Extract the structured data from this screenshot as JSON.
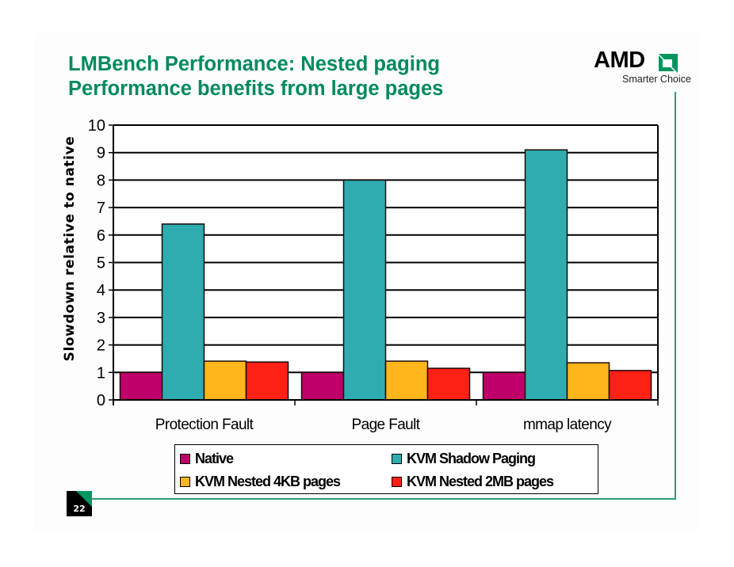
{
  "slide": {
    "title_line1": "LMBench Performance: Nested paging",
    "title_line2": "Performance benefits from large pages",
    "logo": {
      "brand": "AMD",
      "tagline": "Smarter Choice"
    },
    "slide_number": "22",
    "colors": {
      "title": "#008a5e",
      "accent_line": "#2a9c7a"
    }
  },
  "chart_data": {
    "type": "bar",
    "title": "LMBench Performance: Nested paging Performance benefits from large pages",
    "xlabel": "",
    "ylabel": "Slowdown relative to native",
    "ylim": [
      0,
      10
    ],
    "yticks": [
      0,
      1,
      2,
      3,
      4,
      5,
      6,
      7,
      8,
      9,
      10
    ],
    "grid": true,
    "legend_position": "bottom",
    "categories": [
      "Protection Fault",
      "Page Fault",
      "mmap latency"
    ],
    "series": [
      {
        "name": "Native",
        "color": "#c0006a",
        "values": [
          1.0,
          1.0,
          1.0
        ]
      },
      {
        "name": "KVM Shadow Paging",
        "color": "#2eacb0",
        "values": [
          6.4,
          8.0,
          9.1
        ]
      },
      {
        "name": "KVM Nested 4KB pages",
        "color": "#ffb61a",
        "values": [
          1.41,
          1.41,
          1.35
        ]
      },
      {
        "name": "KVM Nested 2MB pages",
        "color": "#ff2016",
        "values": [
          1.38,
          1.15,
          1.07
        ]
      }
    ]
  }
}
